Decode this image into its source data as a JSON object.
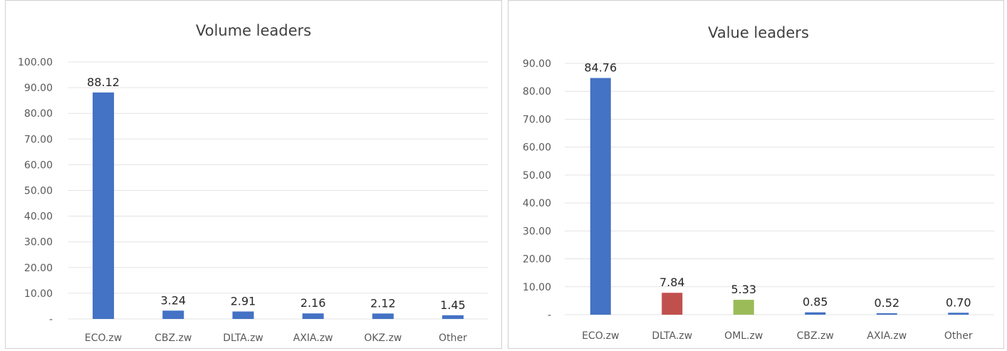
{
  "chart_data": [
    {
      "type": "bar",
      "title": "Volume leaders",
      "categories": [
        "ECO.zw",
        "CBZ.zw",
        "DLTA.zw",
        "AXIA.zw",
        "OKZ.zw",
        "Other"
      ],
      "values": [
        88.12,
        3.24,
        2.91,
        2.16,
        2.12,
        1.45
      ],
      "data_labels": [
        "88.12",
        "3.24",
        "2.91",
        "2.16",
        "2.12",
        "1.45"
      ],
      "bar_colors": [
        "#4472c4",
        "#4472c4",
        "#4472c4",
        "#4472c4",
        "#4472c4",
        "#4472c4"
      ],
      "yticks": [
        "-",
        "10.00",
        "20.00",
        "30.00",
        "40.00",
        "50.00",
        "60.00",
        "70.00",
        "80.00",
        "90.00",
        "100.00"
      ],
      "ylim": [
        0,
        100
      ],
      "xlabel": "",
      "ylabel": "",
      "grid": true,
      "legend": "none"
    },
    {
      "type": "bar",
      "title": "Value leaders",
      "categories": [
        "ECO.zw",
        "DLTA.zw",
        "OML.zw",
        "CBZ.zw",
        "AXIA.zw",
        "Other"
      ],
      "values": [
        84.76,
        7.84,
        5.33,
        0.85,
        0.52,
        0.7
      ],
      "data_labels": [
        "84.76",
        "7.84",
        "5.33",
        "0.85",
        "0.52",
        "0.70"
      ],
      "bar_colors": [
        "#4472c4",
        "#c0504d",
        "#9bbb59",
        "#4472c4",
        "#4472c4",
        "#4472c4"
      ],
      "yticks": [
        "-",
        "10.00",
        "20.00",
        "30.00",
        "40.00",
        "50.00",
        "60.00",
        "70.00",
        "80.00",
        "90.00"
      ],
      "ylim": [
        0,
        90
      ],
      "xlabel": "",
      "ylabel": "",
      "grid": true,
      "legend": "none"
    }
  ]
}
